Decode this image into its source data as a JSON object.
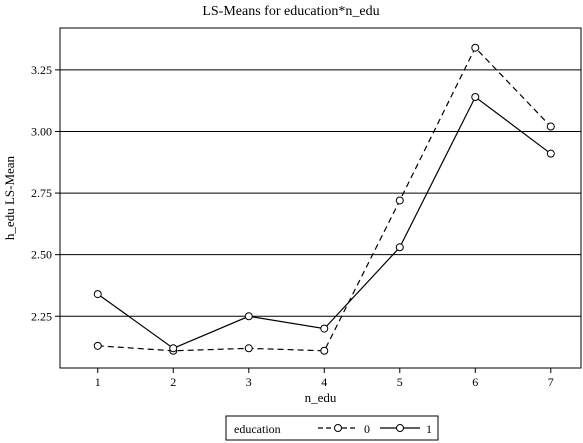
{
  "chart_data": {
    "type": "line",
    "title": "LS-Means for education*n_edu",
    "xlabel": "n_edu",
    "ylabel": "h_edu LS-Mean",
    "x": [
      1,
      2,
      3,
      4,
      5,
      6,
      7
    ],
    "xlim": [
      0.5,
      7.4
    ],
    "ylim": [
      2.04,
      3.42
    ],
    "yticks": [
      2.25,
      2.5,
      2.75,
      3.0,
      3.25
    ],
    "ytick_labels": [
      "2.25",
      "2.50",
      "2.75",
      "3.00",
      "3.25"
    ],
    "grid": true,
    "legend": {
      "title": "education",
      "placement": "bottom"
    },
    "series": [
      {
        "name": "0",
        "style": "dashed",
        "marker": "open-circle",
        "values": [
          2.13,
          2.11,
          2.12,
          2.11,
          2.72,
          3.34,
          3.02
        ]
      },
      {
        "name": "1",
        "style": "solid",
        "marker": "open-circle",
        "values": [
          2.34,
          2.12,
          2.25,
          2.2,
          2.53,
          3.14,
          2.91
        ]
      }
    ],
    "colors": {
      "line": "#000000",
      "grid": "#000000",
      "frame": "#000000",
      "background": "#ffffff"
    }
  }
}
